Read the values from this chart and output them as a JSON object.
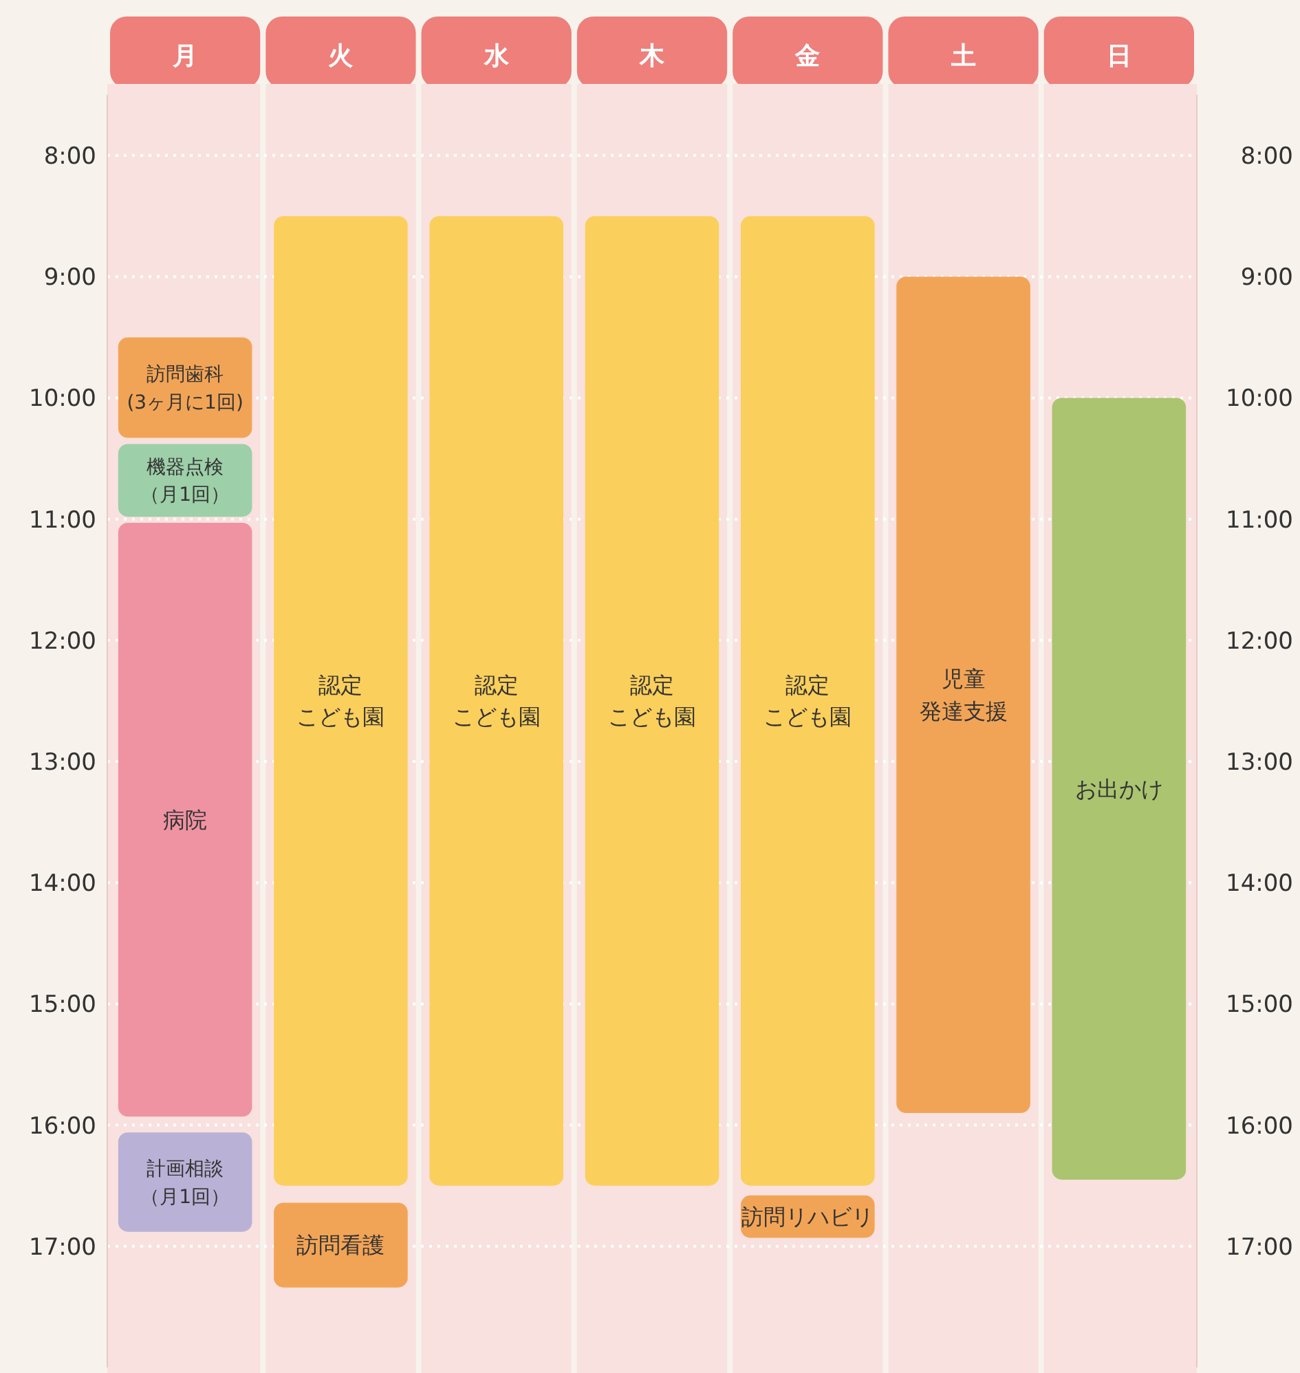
{
  "chart_data": {
    "type": "bar",
    "categories": [
      "月",
      "火",
      "水",
      "木",
      "金",
      "土",
      "日"
    ],
    "ylim": [
      18,
      7.5
    ],
    "yticks": [
      {
        "value": 8,
        "label": "8:00"
      },
      {
        "value": 9,
        "label": "9:00"
      },
      {
        "value": 10,
        "label": "10:00"
      },
      {
        "value": 11,
        "label": "11:00"
      },
      {
        "value": 12,
        "label": "12:00"
      },
      {
        "value": 13,
        "label": "13:00"
      },
      {
        "value": 14,
        "label": "14:00"
      },
      {
        "value": 15,
        "label": "15:00"
      },
      {
        "value": 16,
        "label": "16:00"
      },
      {
        "value": 17,
        "label": "17:00"
      }
    ],
    "y2lim": [
      18,
      7.5
    ],
    "y2ticks": [
      {
        "value": 8,
        "label": "8:00"
      },
      {
        "value": 9,
        "label": "9:00"
      },
      {
        "value": 10,
        "label": "10:00"
      },
      {
        "value": 11,
        "label": "11:00"
      },
      {
        "value": 12,
        "label": "12:00"
      },
      {
        "value": 13,
        "label": "13:00"
      },
      {
        "value": 14,
        "label": "14:00"
      },
      {
        "value": 15,
        "label": "15:00"
      },
      {
        "value": 16,
        "label": "16:00"
      },
      {
        "value": 17,
        "label": "17:00"
      }
    ],
    "grid": "y",
    "series": [
      {
        "base": [
          9.5,
          8.5,
          8.5,
          8.5,
          8.5,
          9,
          10
        ],
        "values": [
          0.83,
          8,
          8,
          8,
          8,
          6.9,
          6.45
        ],
        "colors": [
          "#f2a456",
          "#fbcf5c",
          "#fbcf5c",
          "#fbcf5c",
          "#fbcf5c",
          "#f2a456",
          "#abc470"
        ],
        "value_labels": [
          "訪問歯科(3ヶ月に1回)",
          "認定こども園",
          "認定こども園",
          "認定こども園",
          "認定こども園",
          "児童発達支援",
          "お出かけ"
        ]
      },
      {
        "base": [
          10.38,
          16.64,
          null,
          null,
          16.58,
          null,
          null
        ],
        "values": [
          0.6,
          0.7,
          null,
          null,
          0.35,
          null,
          null
        ],
        "colors": [
          "#9dcfa9",
          "#f2a456",
          null,
          null,
          "#f2a456",
          null,
          null
        ],
        "value_labels": [
          "機器点検（月1回）",
          "訪問看護",
          null,
          null,
          "訪問リハビリ",
          null,
          null
        ]
      },
      {
        "base": [
          11.03,
          null,
          null,
          null,
          null,
          null,
          null
        ],
        "values": [
          4.9,
          null,
          null,
          null,
          null,
          null,
          null
        ],
        "colors": [
          "#ef93a3",
          null,
          null,
          null,
          null,
          null,
          null
        ],
        "value_labels": [
          "病院",
          null,
          null,
          null,
          null,
          null,
          null
        ]
      },
      {
        "base": [
          16.06,
          null,
          null,
          null,
          null,
          null,
          null
        ],
        "values": [
          0.82,
          null,
          null,
          null,
          null,
          null,
          null
        ],
        "colors": [
          "#bab1d6",
          null,
          null,
          null,
          null,
          null,
          null
        ],
        "value_labels": [
          "計画相談（月1回）",
          null,
          null,
          null,
          null,
          null,
          null
        ]
      }
    ]
  }
}
